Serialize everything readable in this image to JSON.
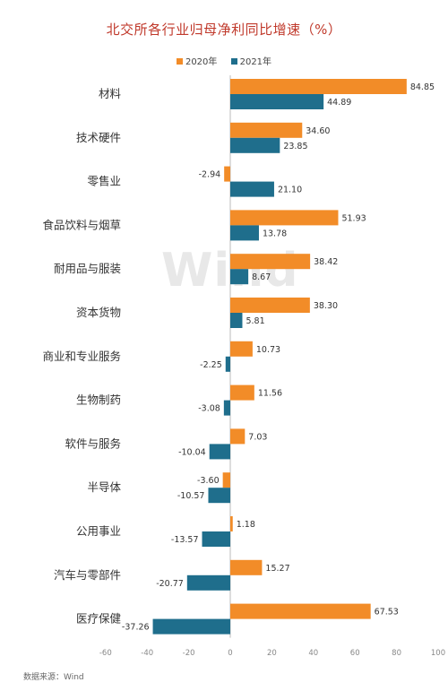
{
  "source": "数据来源：Wind",
  "watermark": "Wind",
  "colors": {
    "series_2020": "#F28C28",
    "series_2021": "#1F6E8C",
    "title": "#C0392B"
  },
  "chart_data": {
    "type": "bar",
    "orientation": "horizontal",
    "title": "北交所各行业归母净利同比增速（%）",
    "categories": [
      "材料",
      "技术硬件",
      "零售业",
      "食品饮料与烟草",
      "耐用品与服装",
      "资本货物",
      "商业和专业服务",
      "生物制药",
      "软件与服务",
      "半导体",
      "公用事业",
      "汽车与零部件",
      "医疗保健"
    ],
    "series": [
      {
        "name": "2020年",
        "values": [
          84.85,
          34.6,
          -2.94,
          51.93,
          38.42,
          38.3,
          10.73,
          11.56,
          7.03,
          -3.6,
          1.18,
          15.27,
          67.53
        ]
      },
      {
        "name": "2021年",
        "values": [
          44.89,
          23.85,
          21.1,
          13.78,
          8.67,
          5.81,
          -2.25,
          -3.08,
          -10.04,
          -10.57,
          -13.57,
          -20.77,
          -37.26
        ]
      }
    ],
    "value_labels": [
      [
        "84.85",
        "34.60",
        "-2.94",
        "51.93",
        "38.42",
        "38.30",
        "10.73",
        "11.56",
        "7.03",
        "-3.60",
        "1.18",
        "15.27",
        "67.53"
      ],
      [
        "44.89",
        "23.85",
        "21.10",
        "13.78",
        "8.67",
        "5.81",
        "-2.25",
        "-3.08",
        "-10.04",
        "-10.57",
        "-13.57",
        "-20.77",
        "-37.26"
      ]
    ],
    "xlim": [
      -60,
      100
    ],
    "x_ticks": [
      -60,
      -40,
      -20,
      0,
      20,
      40,
      60,
      80,
      100
    ],
    "legend_position": "top-center",
    "grid": false
  }
}
